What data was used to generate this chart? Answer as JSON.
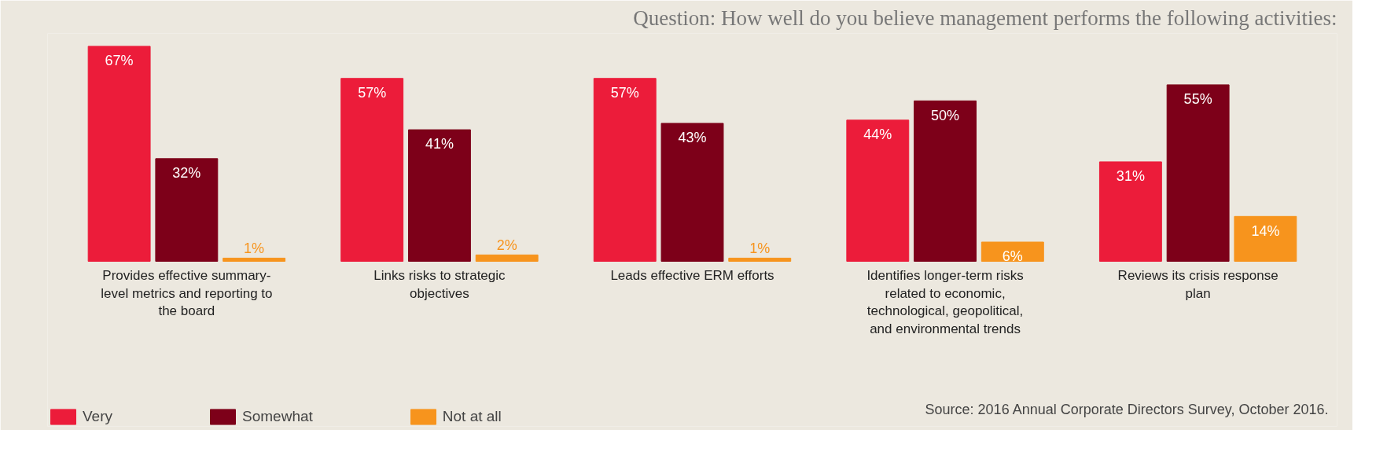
{
  "chart_data": {
    "type": "bar",
    "title": "Question: How well do you believe management performs the following activities:",
    "categories": [
      "Provides effective summary-level metrics and reporting to the board",
      "Links risks to strategic objectives",
      "Leads effective ERM efforts",
      "Identifies longer-term risks related to economic, technological, geopolitical, and environmental trends",
      "Reviews its crisis response plan"
    ],
    "series": [
      {
        "name": "Very",
        "color": "#ec1c3a",
        "values": [
          67,
          57,
          57,
          44,
          31
        ],
        "value_labels": [
          "67%",
          "57%",
          "57%",
          "44%",
          "31%"
        ]
      },
      {
        "name": "Somewhat",
        "color": "#7d0019",
        "values": [
          32,
          41,
          43,
          50,
          55
        ],
        "value_labels": [
          "32%",
          "41%",
          "43%",
          "50%",
          "55%"
        ]
      },
      {
        "name": "Not at all",
        "color": "#f7941d",
        "values": [
          1,
          2,
          1,
          6,
          14
        ],
        "value_labels": [
          "1%",
          "2%",
          "1%",
          "6%",
          "14%"
        ]
      }
    ],
    "legend": "bottom left",
    "annotations": [
      "Source: 2016 Annual Corporate Directors Survey, October 2016."
    ]
  }
}
